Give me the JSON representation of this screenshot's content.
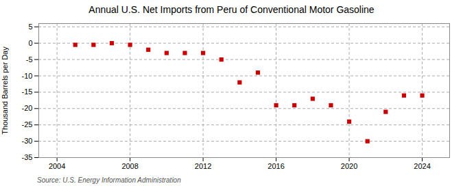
{
  "chart_data": {
    "type": "scatter",
    "title": "Annual U.S. Net Imports from Peru of Conventional Motor Gasoline",
    "ylabel": "Thousand Barrels per Day",
    "annotation": "Source: U.S. Energy Information Administration",
    "x": [
      2005,
      2006,
      2007,
      2008,
      2009,
      2010,
      2011,
      2012,
      2013,
      2014,
      2015,
      2016,
      2017,
      2018,
      2019,
      2020,
      2021,
      2022,
      2023,
      2024
    ],
    "values": [
      -0.5,
      -0.5,
      0.0,
      -0.5,
      -2.0,
      -3.0,
      -3.0,
      -3.0,
      -5.0,
      -12.0,
      -9.0,
      -19.0,
      -19.0,
      -17.0,
      -19.0,
      -24.0,
      -30.0,
      -21.0,
      -16.0,
      -16.0
    ],
    "xlim": [
      2003.0,
      2025.5
    ],
    "xticks": [
      2004,
      2008,
      2012,
      2016,
      2020,
      2024
    ],
    "ylim": [
      -35,
      6
    ],
    "yticks": [
      5,
      0,
      -5,
      -10,
      -15,
      -20,
      -25,
      -30,
      -35
    ],
    "color": "#cc0000",
    "marker": "square",
    "grid": true
  }
}
